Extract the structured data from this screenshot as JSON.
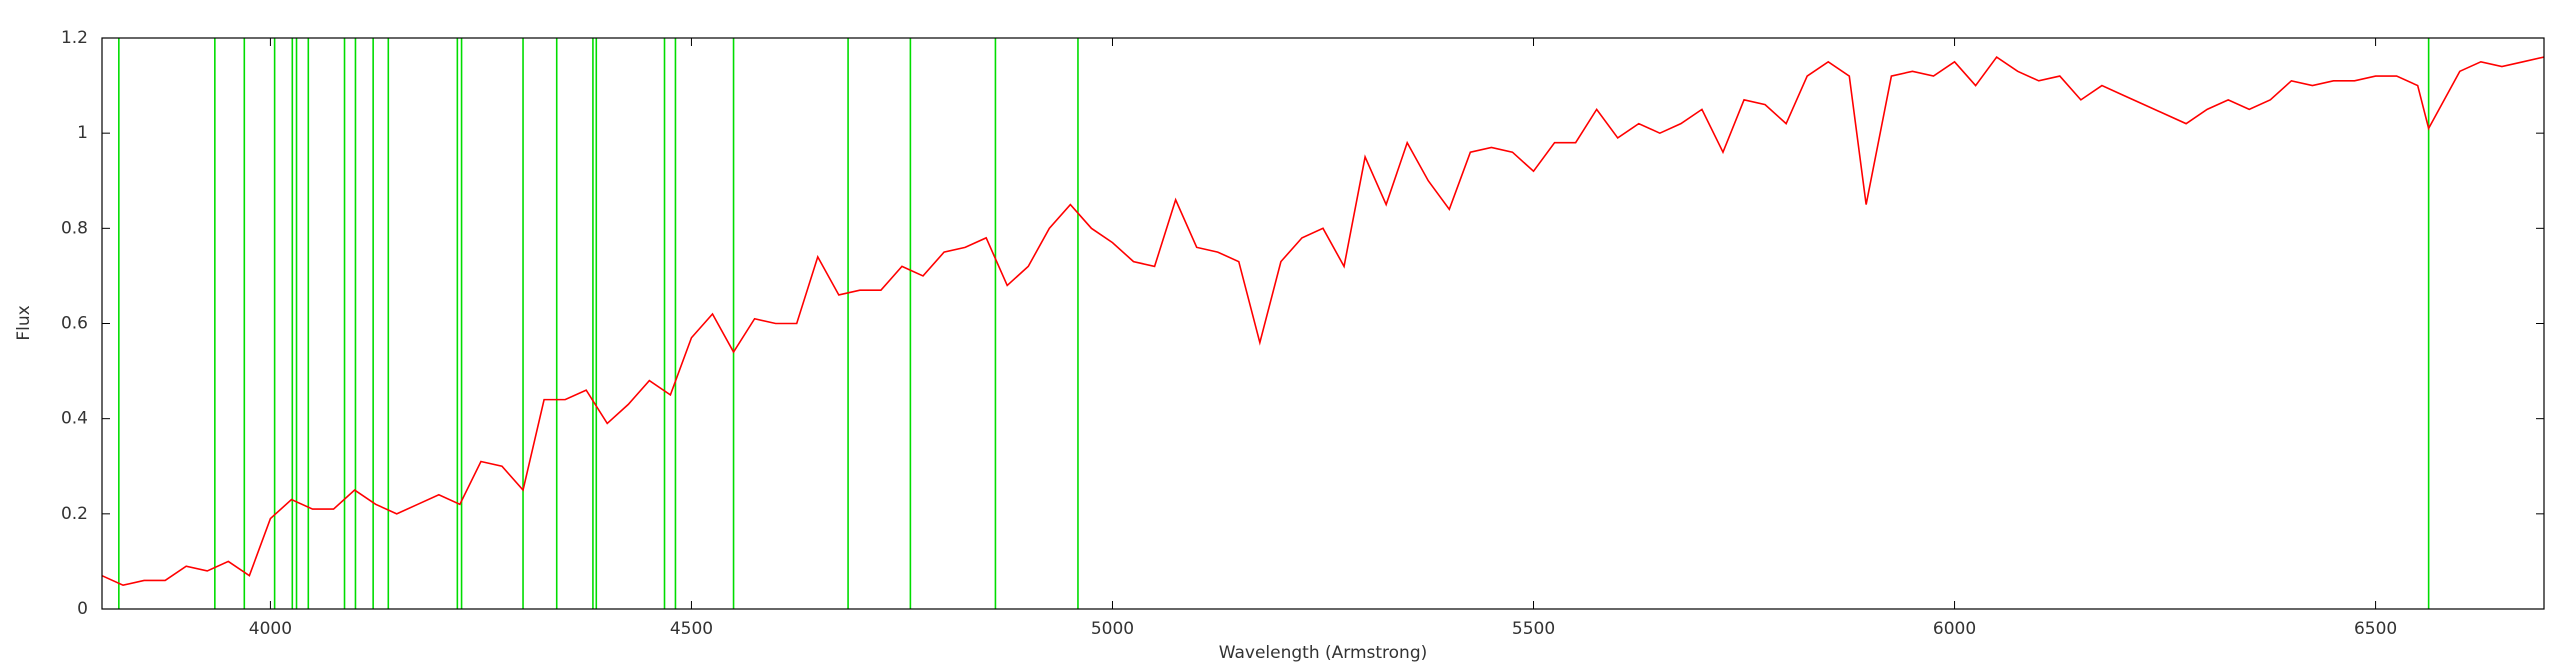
{
  "chart_data": {
    "type": "line",
    "x_label": "Wavelength (Armstrong)",
    "y_label": "Flux",
    "xlim": [
      3800,
      6700
    ],
    "ylim": [
      0,
      1.2
    ],
    "xticks": [
      4000,
      4500,
      5000,
      5500,
      6000,
      6500
    ],
    "yticks": [
      0,
      0.2,
      0.4,
      0.6,
      0.8,
      1,
      1.2
    ],
    "line_color": "#00dd00",
    "lines": [
      3820,
      3934,
      3969,
      4005,
      4026,
      4031,
      4045,
      4088,
      4101,
      4122,
      4140,
      4222,
      4227,
      4300,
      4340,
      4383,
      4387,
      4468,
      4481,
      4550,
      4686,
      4760,
      4861,
      4959,
      6563
    ],
    "x": [
      3800,
      3825,
      3850,
      3875,
      3900,
      3925,
      3950,
      3975,
      4000,
      4025,
      4050,
      4075,
      4100,
      4125,
      4150,
      4175,
      4200,
      4225,
      4250,
      4275,
      4300,
      4325,
      4350,
      4375,
      4400,
      4425,
      4450,
      4475,
      4500,
      4525,
      4550,
      4575,
      4600,
      4625,
      4650,
      4675,
      4700,
      4725,
      4750,
      4775,
      4800,
      4825,
      4850,
      4875,
      4900,
      4925,
      4950,
      4975,
      5000,
      5025,
      5050,
      5075,
      5100,
      5125,
      5150,
      5175,
      5200,
      5225,
      5250,
      5275,
      5300,
      5325,
      5350,
      5375,
      5400,
      5425,
      5450,
      5475,
      5500,
      5525,
      5550,
      5575,
      5600,
      5625,
      5650,
      5675,
      5700,
      5725,
      5750,
      5775,
      5800,
      5825,
      5850,
      5875,
      5895,
      5925,
      5950,
      5975,
      6000,
      6025,
      6050,
      6075,
      6100,
      6125,
      6150,
      6175,
      6200,
      6225,
      6250,
      6275,
      6300,
      6325,
      6350,
      6375,
      6400,
      6425,
      6450,
      6475,
      6500,
      6525,
      6550,
      6563,
      6600,
      6625,
      6650,
      6675,
      6700
    ],
    "series": [
      {
        "color": "#ff0000",
        "values": [
          0.07,
          0.05,
          0.06,
          0.06,
          0.09,
          0.08,
          0.1,
          0.07,
          0.19,
          0.23,
          0.21,
          0.21,
          0.25,
          0.22,
          0.2,
          0.22,
          0.24,
          0.22,
          0.31,
          0.3,
          0.25,
          0.44,
          0.44,
          0.46,
          0.39,
          0.43,
          0.48,
          0.45,
          0.57,
          0.62,
          0.54,
          0.61,
          0.6,
          0.6,
          0.74,
          0.66,
          0.67,
          0.67,
          0.72,
          0.7,
          0.75,
          0.76,
          0.78,
          0.68,
          0.72,
          0.8,
          0.85,
          0.8,
          0.77,
          0.73,
          0.72,
          0.86,
          0.76,
          0.75,
          0.73,
          0.56,
          0.73,
          0.78,
          0.8,
          0.72,
          0.95,
          0.85,
          0.98,
          0.9,
          0.84,
          0.96,
          0.97,
          0.96,
          0.92,
          0.98,
          0.98,
          1.05,
          0.99,
          1.02,
          1.0,
          1.02,
          1.05,
          0.96,
          1.07,
          1.06,
          1.02,
          1.12,
          1.15,
          1.12,
          0.85,
          1.12,
          1.13,
          1.12,
          1.15,
          1.1,
          1.16,
          1.13,
          1.11,
          1.12,
          1.07,
          1.1,
          1.08,
          1.06,
          1.04,
          1.02,
          1.05,
          1.07,
          1.05,
          1.07,
          1.11,
          1.1,
          1.11,
          1.11,
          1.12,
          1.12,
          1.1,
          1.01,
          1.13,
          1.15,
          1.14,
          1.15,
          1.16
        ]
      }
    ]
  }
}
